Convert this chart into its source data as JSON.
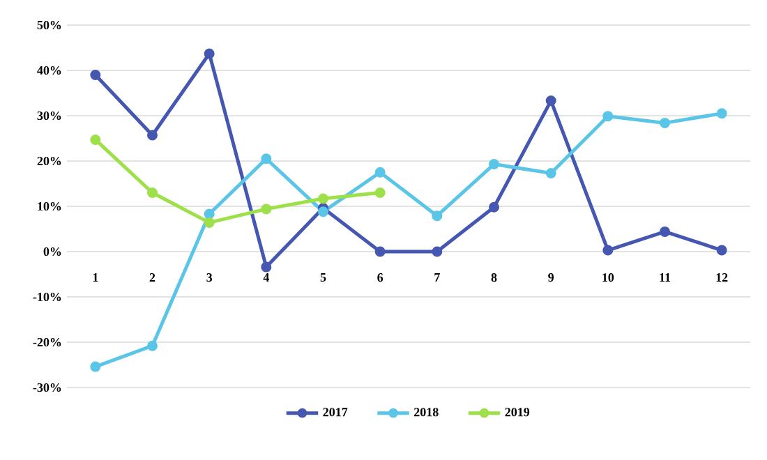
{
  "chart_data": {
    "type": "line",
    "categories": [
      "1",
      "2",
      "3",
      "4",
      "5",
      "6",
      "7",
      "8",
      "9",
      "10",
      "11",
      "12"
    ],
    "series": [
      {
        "name": "2017",
        "color": "#4557b0",
        "values": [
          39,
          25.7,
          43.7,
          -3.4,
          9.6,
          0,
          0,
          9.8,
          33.3,
          0.3,
          4.4,
          0.3
        ]
      },
      {
        "name": "2018",
        "color": "#5bc5e8",
        "values": [
          -25.4,
          -20.8,
          8.3,
          20.5,
          8.8,
          17.5,
          7.9,
          19.3,
          17.3,
          29.9,
          28.4,
          30.5
        ]
      },
      {
        "name": "2019",
        "color": "#9ee04a",
        "values": [
          24.7,
          13,
          6.4,
          9.4,
          11.7,
          13,
          null,
          null,
          null,
          null,
          null,
          null
        ]
      }
    ],
    "ylim": [
      -30,
      50
    ],
    "yticks": [
      {
        "value": -30,
        "label": "-30%"
      },
      {
        "value": -20,
        "label": "-20%"
      },
      {
        "value": -10,
        "label": "-10%"
      },
      {
        "value": 0,
        "label": "0%"
      },
      {
        "value": 10,
        "label": "10%"
      },
      {
        "value": 20,
        "label": "20%"
      },
      {
        "value": 30,
        "label": "30%"
      },
      {
        "value": 40,
        "label": "40%"
      },
      {
        "value": 50,
        "label": "50%"
      }
    ],
    "grid": "y",
    "legend": "bottom",
    "marker": "circle",
    "line_style": "solid"
  }
}
